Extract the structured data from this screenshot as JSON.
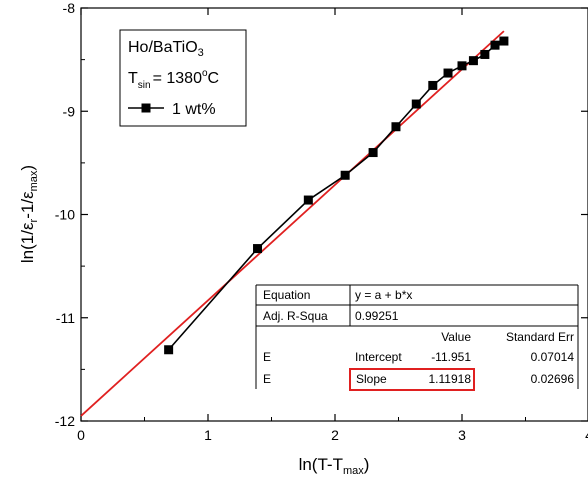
{
  "chart_data": {
    "type": "scatter",
    "xlabel": {
      "main": "ln(T-T",
      "sub": "max",
      "tail": ")"
    },
    "ylabel": {
      "a": "ln(1/ε",
      "a_sub": "r",
      "b": "-1/ε",
      "b_sub": "max",
      "c": ")"
    },
    "xlim": [
      0,
      4
    ],
    "ylim": [
      -12,
      -8
    ],
    "xticks": [
      0,
      1,
      2,
      3,
      4
    ],
    "yticks": [
      -12,
      -11,
      -10,
      -9,
      -8
    ],
    "xtick_labels": [
      "0",
      "1",
      "2",
      "3",
      "4"
    ],
    "ytick_labels": [
      "-12",
      "-11",
      "-10",
      "-9",
      "-8"
    ],
    "grid": false,
    "legend": {
      "placement": "top-left",
      "line1": {
        "main": "Ho/BaTiO",
        "sub": "3"
      },
      "line2": {
        "main": "T",
        "sub": "sin",
        "value": "= 1380",
        "sup": "o",
        "unit": "C"
      },
      "series_label": "1 wt%"
    },
    "series": [
      {
        "name": "1 wt%",
        "color": "#000000",
        "marker": "square",
        "x": [
          0.69,
          1.39,
          1.79,
          2.08,
          2.3,
          2.48,
          2.64,
          2.77,
          2.89,
          3.0,
          3.09,
          3.18,
          3.26,
          3.33
        ],
        "y": [
          -11.31,
          -10.33,
          -9.86,
          -9.62,
          -9.4,
          -9.15,
          -8.93,
          -8.75,
          -8.63,
          -8.56,
          -8.51,
          -8.45,
          -8.36,
          -8.32
        ]
      }
    ],
    "fit": {
      "color": "#e02020",
      "intercept": -11.951,
      "slope": 1.11918,
      "x_range": [
        0,
        3.33
      ]
    },
    "fit_table": {
      "rows": [
        [
          "Equation",
          "y = a + b*x",
          "",
          ""
        ],
        [
          "Adj. R-Squa",
          "0.99251",
          "",
          ""
        ],
        [
          "",
          "",
          "Value",
          "Standard Err"
        ],
        [
          "E",
          "Intercept",
          "-11.951",
          "0.07014"
        ],
        [
          "E",
          "Slope",
          "1.11918",
          "0.02696"
        ]
      ],
      "highlight_color": "#e02020"
    }
  }
}
